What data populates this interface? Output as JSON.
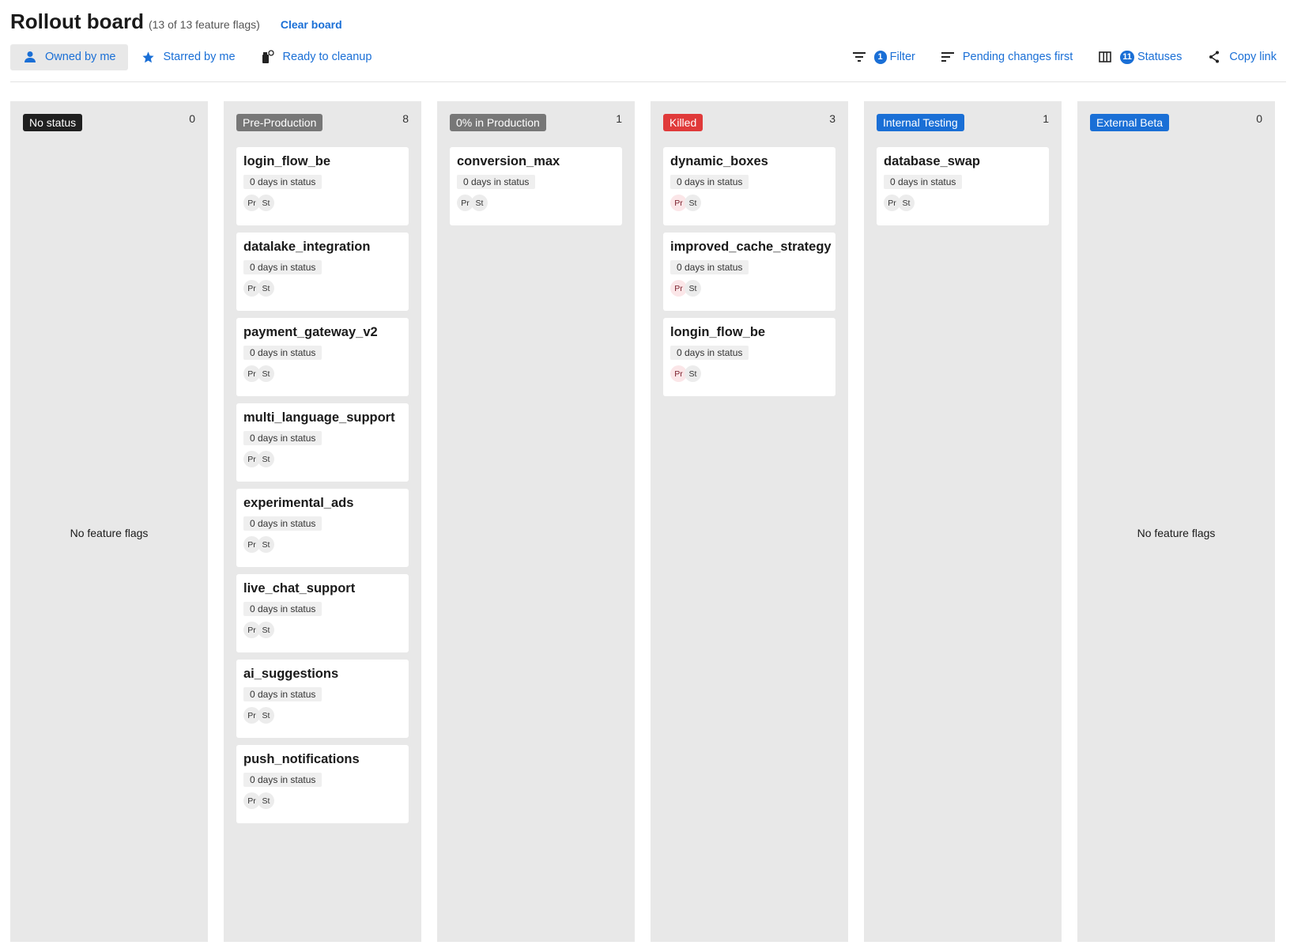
{
  "header": {
    "title": "Rollout board",
    "subtitle": "(13 of 13 feature flags)",
    "clear_label": "Clear board"
  },
  "toolbar": {
    "owned": {
      "label": "Owned by me",
      "icon": "person-icon"
    },
    "starred": {
      "label": "Starred by me",
      "icon": "star-icon"
    },
    "cleanup": {
      "label": "Ready to cleanup",
      "icon": "spray-icon"
    },
    "filter": {
      "label": "Filter",
      "count": "1",
      "icon": "filter-icon"
    },
    "sort": {
      "label": "Pending changes first",
      "icon": "sort-icon"
    },
    "statuses": {
      "label": "Statuses",
      "count": "11",
      "icon": "columns-icon"
    },
    "copy": {
      "label": "Copy link",
      "icon": "share-icon"
    }
  },
  "colors": {
    "accent": "#1a6fd6",
    "no_status": "#1f1f1f",
    "pre_production": "#777777",
    "zero_production": "#777777",
    "killed": "#e03a3a",
    "internal": "#1a6fd6",
    "external": "#1a6fd6"
  },
  "empty_label": "No feature flags",
  "columns": [
    {
      "name": "No status",
      "count": "0",
      "color": "#1f1f1f",
      "cards": []
    },
    {
      "name": "Pre-Production",
      "count": "8",
      "color": "#777777",
      "cards": [
        {
          "name": "login_flow_be",
          "days": "0 days in status",
          "avatars": [
            "Pr",
            "St"
          ]
        },
        {
          "name": "datalake_integration",
          "days": "0 days in status",
          "avatars": [
            "Pr",
            "St"
          ]
        },
        {
          "name": "payment_gateway_v2",
          "days": "0 days in status",
          "avatars": [
            "Pr",
            "St"
          ]
        },
        {
          "name": "multi_language_support",
          "days": "0 days in status",
          "avatars": [
            "Pr",
            "St"
          ]
        },
        {
          "name": "experimental_ads",
          "days": "0 days in status",
          "avatars": [
            "Pr",
            "St"
          ]
        },
        {
          "name": "live_chat_support",
          "days": "0 days in status",
          "avatars": [
            "Pr",
            "St"
          ]
        },
        {
          "name": "ai_suggestions",
          "days": "0 days in status",
          "avatars": [
            "Pr",
            "St"
          ]
        },
        {
          "name": "push_notifications",
          "days": "0 days in status",
          "avatars": [
            "Pr",
            "St"
          ]
        }
      ]
    },
    {
      "name": "0% in Production",
      "count": "1",
      "color": "#777777",
      "cards": [
        {
          "name": "conversion_max",
          "days": "0 days in status",
          "avatars": [
            "Pr",
            "St"
          ]
        }
      ]
    },
    {
      "name": "Killed",
      "count": "3",
      "color": "#e03a3a",
      "pink": true,
      "cards": [
        {
          "name": "dynamic_boxes",
          "days": "0 days in status",
          "avatars": [
            "Pr",
            "St"
          ]
        },
        {
          "name": "improved_cache_strategy",
          "days": "0 days in status",
          "avatars": [
            "Pr",
            "St"
          ]
        },
        {
          "name": "longin_flow_be",
          "days": "0 days in status",
          "avatars": [
            "Pr",
            "St"
          ]
        }
      ]
    },
    {
      "name": "Internal Testing",
      "count": "1",
      "color": "#1a6fd6",
      "cards": [
        {
          "name": "database_swap",
          "days": "0 days in status",
          "avatars": [
            "Pr",
            "St"
          ]
        }
      ]
    },
    {
      "name": "External Beta",
      "count": "0",
      "color": "#1a6fd6",
      "cards": []
    }
  ]
}
